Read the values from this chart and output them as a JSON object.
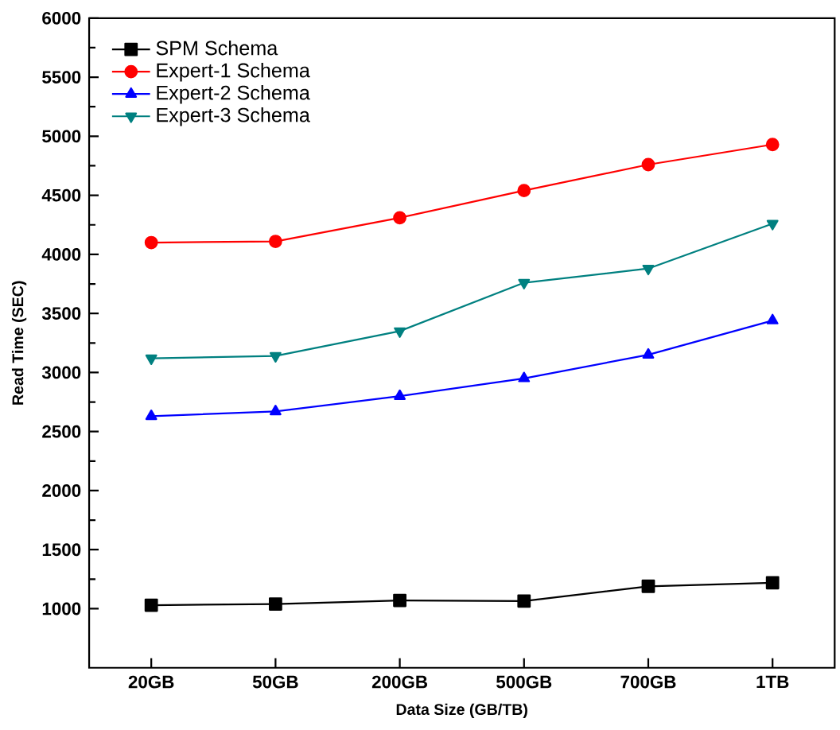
{
  "chart_data": {
    "type": "line",
    "xlabel": "Data Size (GB/TB)",
    "ylabel": "Read Time (SEC)",
    "categories": [
      "20GB",
      "50GB",
      "200GB",
      "500GB",
      "700GB",
      "1TB"
    ],
    "ylim": [
      500,
      6000
    ],
    "yticks": [
      1000,
      1500,
      2000,
      2500,
      3000,
      3500,
      4000,
      4500,
      5000,
      5500,
      6000
    ],
    "legend": "top left",
    "grid": false,
    "series": [
      {
        "name": "SPM Schema",
        "color": "#000000",
        "marker": "square",
        "values": [
          1030,
          1040,
          1070,
          1065,
          1190,
          1220
        ]
      },
      {
        "name": "Expert-1 Schema",
        "color": "#ff0000",
        "marker": "circle",
        "values": [
          4100,
          4110,
          4310,
          4540,
          4760,
          4930
        ]
      },
      {
        "name": "Expert-2 Schema",
        "color": "#0000ff",
        "marker": "triangle",
        "values": [
          2630,
          2670,
          2800,
          2950,
          3150,
          3440
        ]
      },
      {
        "name": "Expert-3 Schema",
        "color": "#008080",
        "marker": "triangle_down",
        "values": [
          3120,
          3140,
          3350,
          3760,
          3880,
          4260
        ]
      }
    ]
  }
}
